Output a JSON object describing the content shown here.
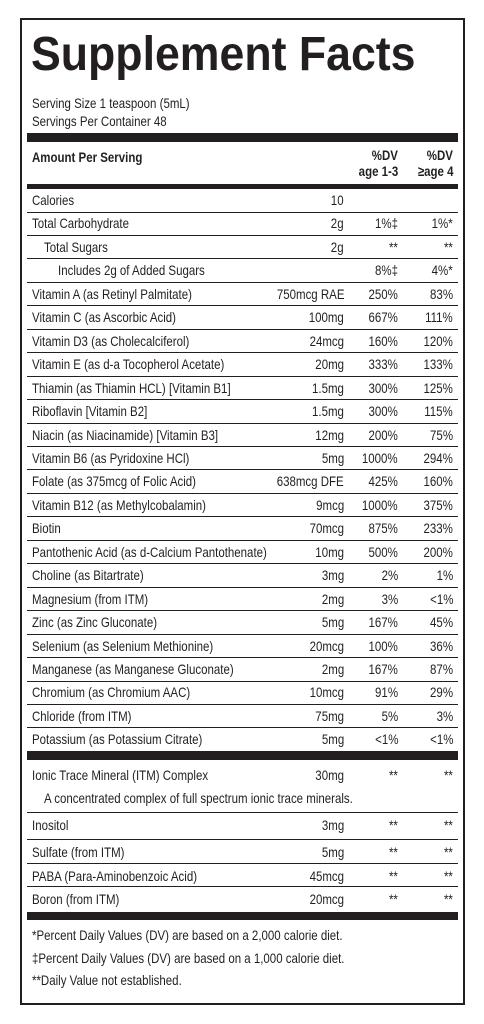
{
  "title": "Supplement Facts",
  "serving_size": "Serving Size 1 teaspoon (5mL)",
  "servings_per_container": "Servings Per Container 48",
  "header": {
    "amount_per_serving": "Amount Per Serving",
    "dv1": [
      "%DV",
      "age 1-3"
    ],
    "dv2": [
      "%DV",
      "≥age 4"
    ]
  },
  "nutrients": [
    {
      "name": "Calories",
      "amount": "10"
    },
    {
      "name": "Total Carbohydrate",
      "amount": "2g",
      "dv1": "1%‡",
      "dv2": "1%*"
    },
    {
      "name": "Total Sugars",
      "amount": "2g",
      "dv1": "**",
      "dv2": "**"
    },
    {
      "name": "Includes 2g of Added Sugars",
      "dv1": "8%‡",
      "dv2": "4%*"
    },
    {
      "name": "Vitamin A (as Retinyl Palmitate)",
      "amount": "750mcg RAE",
      "dv1": "250%",
      "dv2": "83%"
    },
    {
      "name": "Vitamin C (as Ascorbic Acid)",
      "amount": "100mg",
      "dv1": "667%",
      "dv2": "111%"
    },
    {
      "name": "Vitamin D3 (as Cholecalciferol)",
      "amount": "24mcg",
      "dv1": "160%",
      "dv2": "120%"
    },
    {
      "name": "Vitamin E (as d-a Tocopherol Acetate)",
      "amount": "20mg",
      "dv1": "333%",
      "dv2": "133%"
    },
    {
      "name": "Thiamin (as Thiamin HCL) [Vitamin B1]",
      "amount": "1.5mg",
      "dv1": "300%",
      "dv2": "125%"
    },
    {
      "name": "Riboflavin [Vitamin B2]",
      "amount": "1.5mg",
      "dv1": "300%",
      "dv2": "115%"
    },
    {
      "name": "Niacin (as Niacinamide) [Vitamin B3]",
      "amount": "12mg",
      "dv1": "200%",
      "dv2": "75%"
    },
    {
      "name": "Vitamin B6 (as Pyridoxine HCl)",
      "amount": "5mg",
      "dv1": "1000%",
      "dv2": "294%"
    },
    {
      "name": "Folate (as 375mcg of Folic Acid)",
      "amount": "638mcg DFE",
      "dv1": "425%",
      "dv2": "160%"
    },
    {
      "name": "Vitamin B12 (as Methylcobalamin)",
      "amount": "9mcg",
      "dv1": "1000%",
      "dv2": "375%"
    },
    {
      "name": "Biotin",
      "amount": "70mcg",
      "dv1": "875%",
      "dv2": "233%"
    },
    {
      "name": "Pantothenic Acid (as d-Calcium Pantothenate)",
      "amount": "10mg",
      "dv1": "500%",
      "dv2": "200%"
    },
    {
      "name": "Choline (as Bitartrate)",
      "amount": "3mg",
      "dv1": "2%",
      "dv2": "1%"
    },
    {
      "name": "Magnesium (from ITM)",
      "amount": "2mg",
      "dv1": "3%",
      "dv2": "<1%"
    },
    {
      "name": "Zinc (as Zinc Gluconate)",
      "amount": "5mg",
      "dv1": "167%",
      "dv2": "45%"
    },
    {
      "name": "Selenium (as Selenium Methionine)",
      "amount": "20mcg",
      "dv1": "100%",
      "dv2": "36%"
    },
    {
      "name": "Manganese (as Manganese Gluconate)",
      "amount": "2mg",
      "dv1": "167%",
      "dv2": "87%"
    },
    {
      "name": "Chromium (as Chromium AAC)",
      "amount": "10mcg",
      "dv1": "91%",
      "dv2": "29%"
    },
    {
      "name": "Chloride (from ITM)",
      "amount": "75mg",
      "dv1": "5%",
      "dv2": "3%"
    },
    {
      "name": "Potassium (as Potassium Citrate)",
      "amount": "5mg",
      "dv1": "<1%",
      "dv2": "<1%"
    }
  ],
  "trace_mineral": {
    "name": "Ionic Trace Mineral (ITM) Complex",
    "amount": "30mg",
    "dv1": "**",
    "dv2": "**",
    "note": "A concentrated complex of full spectrum ionic trace minerals."
  },
  "other_ingredients": [
    {
      "name": "Inositol",
      "amount": "3mg",
      "dv1": "**",
      "dv2": "**"
    },
    {
      "name": "Sulfate (from ITM)",
      "amount": "5mg",
      "dv1": "**",
      "dv2": "**"
    },
    {
      "name": "PABA (Para-Aminobenzoic Acid)",
      "amount": "45mcg",
      "dv1": "**",
      "dv2": "**"
    },
    {
      "name": "Boron (from ITM)",
      "amount": "20mcg",
      "dv1": "**",
      "dv2": "**"
    }
  ],
  "footnotes": [
    "*Percent Daily Values (DV) are based on a 2,000 calorie diet.",
    "‡Percent Daily Values (DV) are based on a 1,000 calorie diet.",
    "**Daily Value not established."
  ]
}
